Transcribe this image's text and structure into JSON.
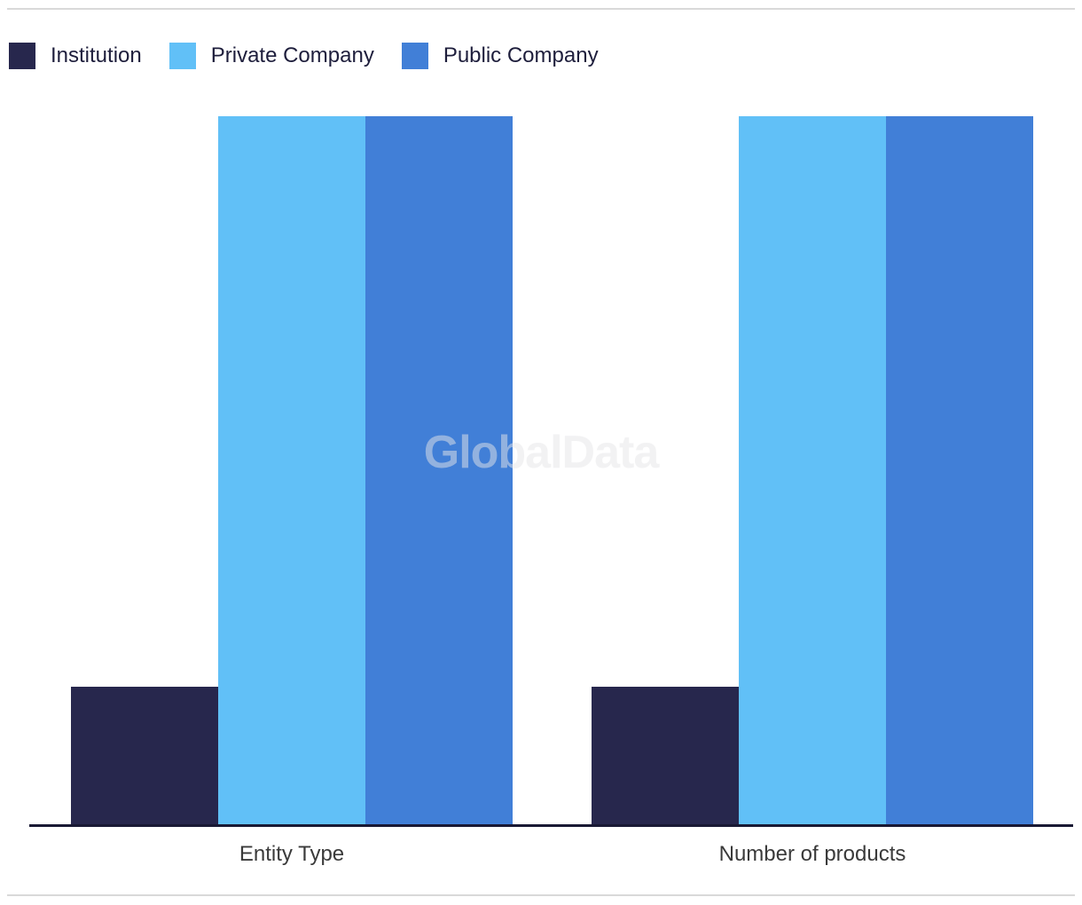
{
  "legend": {
    "items": [
      {
        "label": "Institution",
        "color": "#27274d"
      },
      {
        "label": "Private Company",
        "color": "#61c0f7"
      },
      {
        "label": "Public Company",
        "color": "#417fd7"
      }
    ]
  },
  "watermark": {
    "text": "GlobalData"
  },
  "chart_data": {
    "type": "bar",
    "categories": [
      "Entity Type",
      "Number of products"
    ],
    "series": [
      {
        "name": "Institution",
        "color": "#27274d",
        "values": [
          19.5,
          19.5
        ]
      },
      {
        "name": "Private Company",
        "color": "#61c0f7",
        "values": [
          100,
          100
        ]
      },
      {
        "name": "Public Company",
        "color": "#417fd7",
        "values": [
          100,
          100
        ]
      }
    ],
    "ylim": [
      0,
      100
    ],
    "value_scale": "relative-percent-of-max (no numeric axis shown)",
    "grid": false,
    "y_axis": "hidden",
    "legend_position": "top-left",
    "watermark": "GlobalData",
    "title": ""
  },
  "colors": {
    "axis_line": "#191934",
    "divider": "#d9d9d9",
    "legend_text": "#1e1e3c",
    "category_label": "#3a3a3a",
    "watermark": "rgba(230,230,232,0.5)"
  }
}
